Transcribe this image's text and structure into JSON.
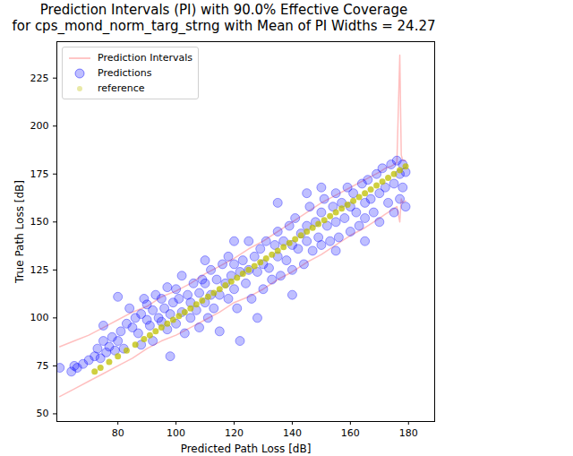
{
  "chart_data": {
    "type": "scatter",
    "title": "Prediction Intervals (PI) with 90.0% Effective Coverage",
    "subtitle": "for cps_mond_norm_targ_strng with Mean of PI Widths = 24.27",
    "x_label": "Predicted Path Loss [dB]",
    "y_label": "True Path Loss [dB]",
    "xlim": [
      59,
      189
    ],
    "ylim": [
      46,
      244
    ],
    "xticks": [
      80,
      100,
      120,
      140,
      160,
      180
    ],
    "yticks": [
      50,
      75,
      100,
      125,
      150,
      175,
      200,
      225
    ],
    "grid": false,
    "legend": "upper left",
    "series": [
      {
        "name": "Prediction Intervals",
        "type": "line",
        "color": "#ff0000",
        "line_style": "solid",
        "x": [
          60,
          65,
          70,
          75,
          80,
          85,
          90,
          95,
          100,
          105,
          110,
          115,
          120,
          125,
          130,
          135,
          140,
          145,
          150,
          155,
          160,
          165,
          170,
          172,
          174,
          175,
          176,
          177,
          177.5,
          178,
          179
        ],
        "upper": [
          85,
          88,
          91,
          95,
          99,
          103,
          106,
          111,
          114,
          118,
          123,
          127,
          131,
          136,
          140,
          145,
          150,
          155,
          160,
          164,
          168,
          172,
          176,
          178,
          179,
          180,
          181,
          237,
          185,
          182,
          182
        ],
        "lower": [
          59,
          63,
          67,
          71,
          75,
          79,
          84,
          88,
          91,
          95,
          99,
          103,
          108,
          111,
          115,
          120,
          124,
          129,
          133,
          138,
          143,
          147,
          152,
          154,
          156,
          157,
          158,
          150,
          162,
          160,
          161
        ]
      },
      {
        "name": "Predictions",
        "type": "scatter",
        "color": "#0000ff",
        "marker": "o",
        "x": [
          60,
          64,
          65,
          66,
          68,
          70,
          72,
          73,
          74,
          75,
          75,
          76,
          77,
          78,
          79,
          80,
          80,
          81,
          82,
          83,
          84,
          85,
          86,
          87,
          88,
          88,
          89,
          90,
          90,
          91,
          92,
          92,
          93,
          94,
          95,
          95,
          96,
          97,
          97,
          98,
          98,
          99,
          100,
          100,
          101,
          102,
          102,
          103,
          104,
          105,
          105,
          106,
          107,
          108,
          108,
          109,
          110,
          110,
          111,
          112,
          112,
          113,
          114,
          115,
          115,
          116,
          117,
          118,
          118,
          119,
          120,
          120,
          121,
          122,
          123,
          124,
          125,
          125,
          126,
          127,
          128,
          129,
          130,
          130,
          131,
          132,
          133,
          134,
          135,
          135,
          136,
          137,
          138,
          139,
          140,
          140,
          141,
          142,
          143,
          144,
          145,
          145,
          146,
          147,
          148,
          149,
          150,
          150,
          151,
          152,
          153,
          154,
          155,
          155,
          156,
          157,
          158,
          159,
          160,
          160,
          161,
          162,
          163,
          164,
          165,
          165,
          166,
          167,
          168,
          169,
          170,
          170,
          171,
          172,
          173,
          174,
          175,
          175,
          176,
          177,
          177,
          178,
          178,
          179,
          179,
          122,
          128,
          140,
          135,
          145,
          155,
          165,
          120,
          110,
          150
        ],
        "values": [
          74,
          72,
          75,
          74,
          76,
          78,
          80,
          84,
          79,
          88,
          96,
          82,
          85,
          90,
          83,
          88,
          111,
          93,
          84,
          97,
          105,
          95,
          100,
          92,
          102,
          86,
          110,
          99,
          107,
          96,
          104,
          88,
          112,
          100,
          98,
          110,
          105,
          94,
          116,
          102,
          80,
          108,
          97,
          115,
          110,
          103,
          122,
          92,
          112,
          108,
          100,
          118,
          104,
          113,
          95,
          120,
          108,
          118,
          100,
          125,
          112,
          105,
          120,
          112,
          93,
          128,
          118,
          110,
          132,
          122,
          115,
          128,
          105,
          124,
          130,
          118,
          125,
          140,
          110,
          132,
          124,
          136,
          128,
          115,
          140,
          126,
          120,
          138,
          132,
          145,
          122,
          140,
          130,
          148,
          138,
          125,
          152,
          136,
          144,
          128,
          148,
          140,
          158,
          135,
          150,
          142,
          155,
          138,
          162,
          148,
          140,
          158,
          150,
          165,
          142,
          160,
          152,
          168,
          158,
          145,
          165,
          155,
          148,
          170,
          160,
          152,
          172,
          162,
          155,
          175,
          165,
          150,
          178,
          168,
          160,
          180,
          170,
          155,
          182,
          175,
          162,
          180,
          168,
          176,
          158,
          88,
          100,
          112,
          160,
          165,
          135,
          140,
          140,
          130,
          168
        ]
      },
      {
        "name": "reference",
        "type": "scatter",
        "color": "#bfbf00",
        "marker": "o",
        "x": [
          72,
          74,
          77,
          80,
          83,
          86,
          89,
          91,
          93,
          95,
          97,
          99,
          101,
          103,
          105,
          107,
          109,
          111,
          113,
          115,
          117,
          119,
          121,
          123,
          125,
          127,
          129,
          131,
          133,
          135,
          137,
          139,
          141,
          143,
          145,
          147,
          149,
          151,
          153,
          155,
          157,
          159,
          161,
          163,
          165,
          167,
          169,
          171,
          173,
          175,
          177,
          179
        ],
        "values": [
          72,
          74,
          77,
          80,
          83,
          86,
          89,
          91,
          93,
          95,
          97,
          99,
          101,
          103,
          105,
          107,
          109,
          111,
          113,
          115,
          117,
          119,
          121,
          123,
          125,
          127,
          129,
          131,
          133,
          135,
          137,
          139,
          141,
          143,
          145,
          147,
          149,
          151,
          153,
          155,
          157,
          159,
          161,
          163,
          165,
          167,
          169,
          171,
          173,
          175,
          177,
          179
        ]
      }
    ]
  }
}
